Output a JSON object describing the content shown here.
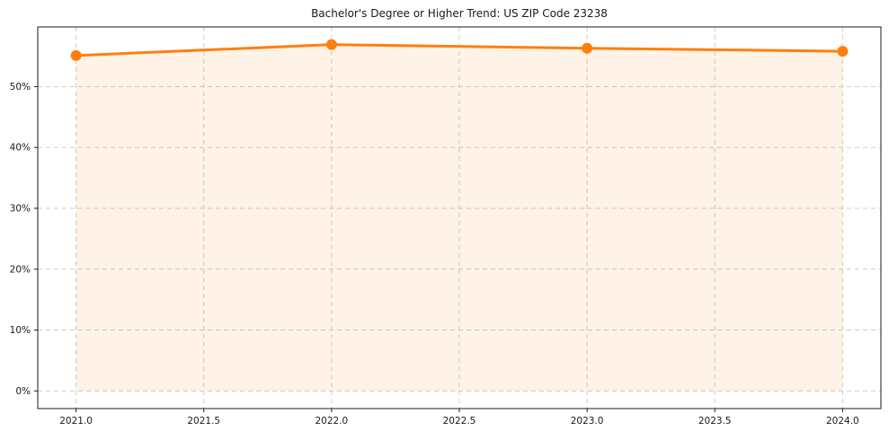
{
  "chart_data": {
    "type": "area",
    "title": "Bachelor's Degree or Higher Trend: US ZIP Code 23238",
    "x": [
      2021,
      2022,
      2023,
      2024
    ],
    "values": [
      55.1,
      56.9,
      56.3,
      55.8
    ],
    "xlim": [
      2020.85,
      2024.15
    ],
    "ylim": [
      -2.9,
      59.8
    ],
    "fill_baseline": 0,
    "xtick_values": [
      2021.0,
      2021.5,
      2022.0,
      2022.5,
      2023.0,
      2023.5,
      2024.0
    ],
    "xtick_labels": [
      "2021.0",
      "2021.5",
      "2022.0",
      "2022.5",
      "2023.0",
      "2023.5",
      "2024.0"
    ],
    "ytick_values": [
      0,
      10,
      20,
      30,
      40,
      50
    ],
    "ytick_labels": [
      "0%",
      "10%",
      "20%",
      "30%",
      "40%",
      "50%"
    ],
    "grid": true,
    "legend": false,
    "line_color": "#ff7f0e",
    "marker_color": "#ff7f0e",
    "fill_color": "#ff7f0e",
    "fill_alpha": 0.1,
    "grid_color": "#cccccc",
    "spine_color": "#1a1a1a",
    "background_color": "#ffffff"
  }
}
